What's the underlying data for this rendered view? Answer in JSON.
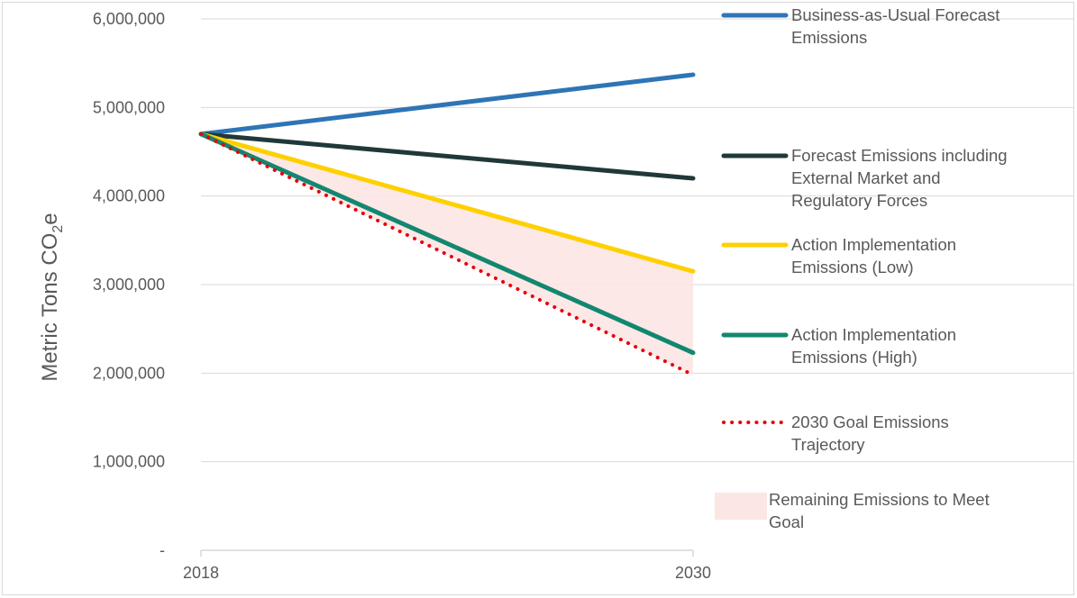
{
  "chart_data": {
    "type": "line",
    "x": [
      "2018",
      "2030"
    ],
    "ylabel_main": "Metric Tons CO",
    "ylabel_sub": "2",
    "ylabel_tail": "e",
    "ylim": [
      0,
      6000000
    ],
    "yticks": [
      0,
      1000000,
      2000000,
      3000000,
      4000000,
      5000000,
      6000000
    ],
    "ytick_labels": [
      "-",
      "1,000,000",
      "2,000,000",
      "3,000,000",
      "4,000,000",
      "5,000,000",
      "6,000,000"
    ],
    "grid": true,
    "legend_position": "right",
    "series": [
      {
        "name_lines": [
          "Business-as-Usual Forecast",
          "Emissions"
        ],
        "values": [
          4700000,
          5370000
        ],
        "color": "#2e75b6",
        "style": "solid"
      },
      {
        "name_lines": [
          "Forecast Emissions including",
          "External Market and",
          "Regulatory Forces"
        ],
        "values": [
          4700000,
          4200000
        ],
        "color": "#203838",
        "style": "solid"
      },
      {
        "name_lines": [
          "Action Implementation",
          "Emissions (Low)"
        ],
        "values": [
          4700000,
          3150000
        ],
        "color": "#ffd000",
        "style": "solid"
      },
      {
        "name_lines": [
          "Action Implementation",
          "Emissions (High)"
        ],
        "values": [
          4700000,
          2230000
        ],
        "color": "#12876f",
        "style": "solid"
      },
      {
        "name_lines": [
          "2030 Goal Emissions",
          "Trajectory"
        ],
        "values": [
          4700000,
          1980000
        ],
        "color": "#e8000b",
        "style": "dotted"
      }
    ],
    "area": {
      "name_lines": [
        "Remaining Emissions to Meet",
        " Goal"
      ],
      "upper": [
        4700000,
        3150000
      ],
      "lower": [
        4700000,
        1980000
      ],
      "color": "#fce6e3"
    }
  }
}
